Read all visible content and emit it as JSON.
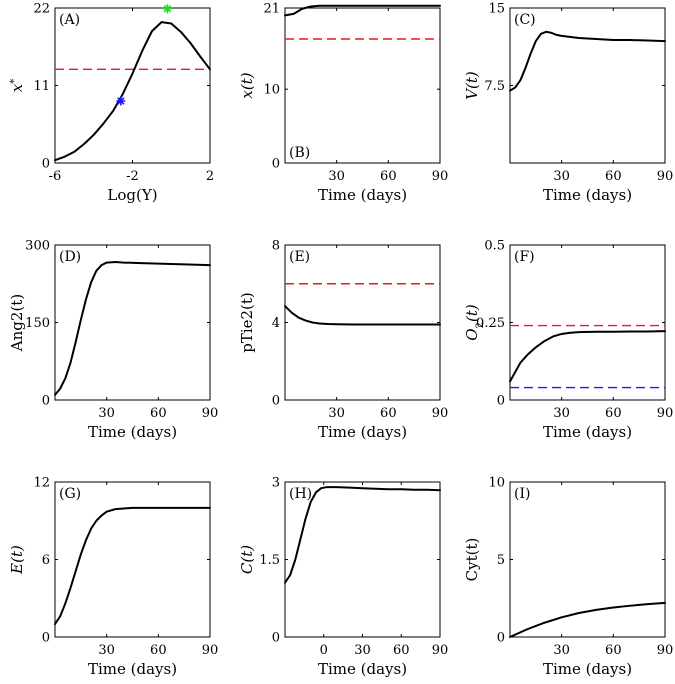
{
  "figure": {
    "background": "#ffffff",
    "line_color": "#000000"
  },
  "chart_data": [
    {
      "id": "A",
      "type": "line",
      "panel_label": "(A)",
      "xlabel": "Log(Y)",
      "ylabel": "x*",
      "xlim": [
        -6,
        2
      ],
      "ylim": [
        0,
        22
      ],
      "xticks": [
        "-6",
        "-2",
        "2"
      ],
      "xtick_values": [
        -6,
        -2,
        2
      ],
      "yticks": [
        "0",
        "11",
        "22"
      ],
      "ytick_values": [
        0,
        11,
        22
      ],
      "series": [
        {
          "name": "x*",
          "color": "#000000",
          "x": [
            -6,
            -5.5,
            -5,
            -4.5,
            -4,
            -3.5,
            -3,
            -2.5,
            -2,
            -1.5,
            -1,
            -0.5,
            0,
            0.5,
            1,
            1.5,
            2
          ],
          "y": [
            0.4,
            0.9,
            1.6,
            2.7,
            4.0,
            5.6,
            7.4,
            9.8,
            12.7,
            15.9,
            18.7,
            20.0,
            19.8,
            18.6,
            17.0,
            15.1,
            13.3
          ]
        }
      ],
      "hlines": [
        {
          "y": 13.3,
          "color": "#e8191a",
          "dash": true
        }
      ],
      "markers": [
        {
          "x": -2.6,
          "y": 8.8,
          "color": "#1a1aff",
          "symbol": "*"
        },
        {
          "x": -0.2,
          "y": 21.9,
          "color": "#22dd22",
          "symbol": "*"
        }
      ]
    },
    {
      "id": "B",
      "type": "line",
      "panel_label": "(B)",
      "xlabel": "Time (days)",
      "ylabel": "x(t)",
      "xlim": [
        0,
        90
      ],
      "ylim": [
        0,
        21
      ],
      "xticks": [
        "30",
        "60",
        "90"
      ],
      "xtick_values": [
        30,
        60,
        90
      ],
      "yticks": [
        "0",
        "10",
        "21"
      ],
      "ytick_values": [
        0,
        10,
        21
      ],
      "series": [
        {
          "name": "x(t)",
          "color": "#000000",
          "x": [
            0,
            5,
            10,
            15,
            20,
            30,
            40,
            60,
            90
          ],
          "y": [
            20.0,
            20.2,
            20.9,
            21.2,
            21.3,
            21.3,
            21.3,
            21.3,
            21.3
          ]
        }
      ],
      "hlines": [
        {
          "y": 16.8,
          "color": "#e8191a",
          "dash": true
        }
      ]
    },
    {
      "id": "C",
      "type": "line",
      "panel_label": "(C)",
      "xlabel": "Time (days)",
      "ylabel": "V(t)",
      "xlim": [
        0,
        90
      ],
      "ylim": [
        0,
        15
      ],
      "xticks": [
        "30",
        "60",
        "90"
      ],
      "xtick_values": [
        30,
        60,
        90
      ],
      "yticks": [
        "7.5",
        "15"
      ],
      "ytick_values": [
        7.5,
        15
      ],
      "series": [
        {
          "name": "V(t)",
          "color": "#000000",
          "x": [
            0,
            3,
            6,
            9,
            12,
            15,
            18,
            21,
            24,
            27,
            30,
            40,
            50,
            60,
            70,
            80,
            90
          ],
          "y": [
            7.0,
            7.3,
            8.0,
            9.2,
            10.6,
            11.8,
            12.5,
            12.7,
            12.6,
            12.4,
            12.3,
            12.1,
            12.0,
            11.9,
            11.9,
            11.85,
            11.8
          ]
        }
      ],
      "hlines": []
    },
    {
      "id": "D",
      "type": "line",
      "panel_label": "(D)",
      "xlabel": "Time (days)",
      "ylabel": "Ang2(t)",
      "xlim": [
        0,
        90
      ],
      "ylim": [
        0,
        300
      ],
      "xticks": [
        "30",
        "60",
        "90"
      ],
      "xtick_values": [
        30,
        60,
        90
      ],
      "yticks": [
        "0",
        "150",
        "300"
      ],
      "ytick_values": [
        0,
        150,
        300
      ],
      "series": [
        {
          "name": "Ang2(t)",
          "color": "#000000",
          "x": [
            0,
            3,
            6,
            9,
            12,
            15,
            18,
            21,
            24,
            27,
            30,
            35,
            40,
            50,
            60,
            70,
            80,
            90
          ],
          "y": [
            10,
            22,
            42,
            72,
            112,
            155,
            195,
            228,
            250,
            261,
            266,
            267,
            266,
            265,
            264,
            263,
            262,
            261
          ]
        }
      ],
      "hlines": []
    },
    {
      "id": "E",
      "type": "line",
      "panel_label": "(E)",
      "xlabel": "Time (days)",
      "ylabel": "pTie2(t)",
      "xlim": [
        0,
        90
      ],
      "ylim": [
        0,
        8
      ],
      "xticks": [
        "30",
        "60",
        "90"
      ],
      "xtick_values": [
        30,
        60,
        90
      ],
      "yticks": [
        "0",
        "4",
        "8"
      ],
      "ytick_values": [
        0,
        4,
        8
      ],
      "series": [
        {
          "name": "pTie2(t)",
          "color": "#000000",
          "x": [
            0,
            4,
            8,
            12,
            16,
            20,
            25,
            30,
            40,
            50,
            60,
            70,
            80,
            90
          ],
          "y": [
            4.85,
            4.5,
            4.25,
            4.1,
            4.0,
            3.95,
            3.92,
            3.91,
            3.9,
            3.9,
            3.9,
            3.9,
            3.9,
            3.9
          ]
        }
      ],
      "hlines": [
        {
          "y": 6.0,
          "color": "#e8191a",
          "dash": true
        }
      ]
    },
    {
      "id": "F",
      "type": "line",
      "panel_label": "(F)",
      "xlabel": "Time (days)",
      "ylabel": "O2(t)",
      "xlim": [
        0,
        90
      ],
      "ylim": [
        0,
        0.5
      ],
      "xticks": [
        "30",
        "60",
        "90"
      ],
      "xtick_values": [
        30,
        60,
        90
      ],
      "yticks": [
        "0",
        "0.25",
        "0.5"
      ],
      "ytick_values": [
        0,
        0.25,
        0.5
      ],
      "series": [
        {
          "name": "O2(t)",
          "color": "#000000",
          "x": [
            0,
            3,
            6,
            10,
            15,
            20,
            25,
            30,
            35,
            40,
            50,
            60,
            70,
            80,
            90
          ],
          "y": [
            0.06,
            0.09,
            0.12,
            0.145,
            0.17,
            0.19,
            0.205,
            0.213,
            0.217,
            0.219,
            0.22,
            0.22,
            0.221,
            0.221,
            0.222
          ]
        }
      ],
      "hlines": [
        {
          "y": 0.24,
          "color": "#e8191a",
          "dash": true
        },
        {
          "y": 0.04,
          "color": "#1a1aff",
          "dash": true
        }
      ]
    },
    {
      "id": "G",
      "type": "line",
      "panel_label": "(G)",
      "xlabel": "Time (days)",
      "ylabel": "E(t)",
      "xlim": [
        0,
        90
      ],
      "ylim": [
        0,
        12
      ],
      "xticks": [
        "30",
        "60",
        "90"
      ],
      "xtick_values": [
        30,
        60,
        90
      ],
      "yticks": [
        "0",
        "6",
        "12"
      ],
      "ytick_values": [
        0,
        6,
        12
      ],
      "series": [
        {
          "name": "E(t)",
          "color": "#000000",
          "x": [
            0,
            3,
            6,
            9,
            12,
            15,
            18,
            21,
            24,
            27,
            30,
            35,
            40,
            45,
            50,
            60,
            90
          ],
          "y": [
            1.0,
            1.6,
            2.6,
            3.8,
            5.1,
            6.4,
            7.5,
            8.4,
            9.0,
            9.4,
            9.7,
            9.9,
            9.95,
            10.0,
            10.0,
            10.0,
            10.0
          ]
        }
      ],
      "hlines": []
    },
    {
      "id": "H",
      "type": "line",
      "panel_label": "(H)",
      "xlabel": "Time (days)",
      "ylabel": "C(t)",
      "xlim": [
        -30,
        90
      ],
      "ylim": [
        0,
        3
      ],
      "xticks": [
        "0",
        "30",
        "60",
        "90"
      ],
      "xtick_values": [
        0,
        30,
        60,
        90
      ],
      "yticks": [
        "0",
        "1.5",
        "3"
      ],
      "ytick_values": [
        0,
        1.5,
        3
      ],
      "series": [
        {
          "name": "C(t)",
          "color": "#000000",
          "x": [
            -30,
            -26,
            -22,
            -18,
            -14,
            -10,
            -6,
            -2,
            2,
            6,
            10,
            20,
            30,
            40,
            50,
            60,
            70,
            80,
            90
          ],
          "y": [
            1.05,
            1.2,
            1.5,
            1.9,
            2.3,
            2.62,
            2.8,
            2.88,
            2.9,
            2.9,
            2.9,
            2.89,
            2.88,
            2.87,
            2.86,
            2.86,
            2.85,
            2.85,
            2.84
          ]
        }
      ],
      "hlines": []
    },
    {
      "id": "I",
      "type": "line",
      "panel_label": "(I)",
      "xlabel": "Time (days)",
      "ylabel": "Cyt(t)",
      "xlim": [
        0,
        90
      ],
      "ylim": [
        0,
        10
      ],
      "xticks": [
        "30",
        "60",
        "90"
      ],
      "xtick_values": [
        30,
        60,
        90
      ],
      "yticks": [
        "0",
        "5",
        "10"
      ],
      "ytick_values": [
        0,
        5,
        10
      ],
      "series": [
        {
          "name": "Cyt(t)",
          "color": "#000000",
          "x": [
            0,
            10,
            20,
            30,
            40,
            50,
            60,
            70,
            80,
            90
          ],
          "y": [
            0,
            0.5,
            0.92,
            1.27,
            1.55,
            1.75,
            1.9,
            2.02,
            2.12,
            2.2
          ]
        }
      ],
      "hlines": []
    }
  ]
}
